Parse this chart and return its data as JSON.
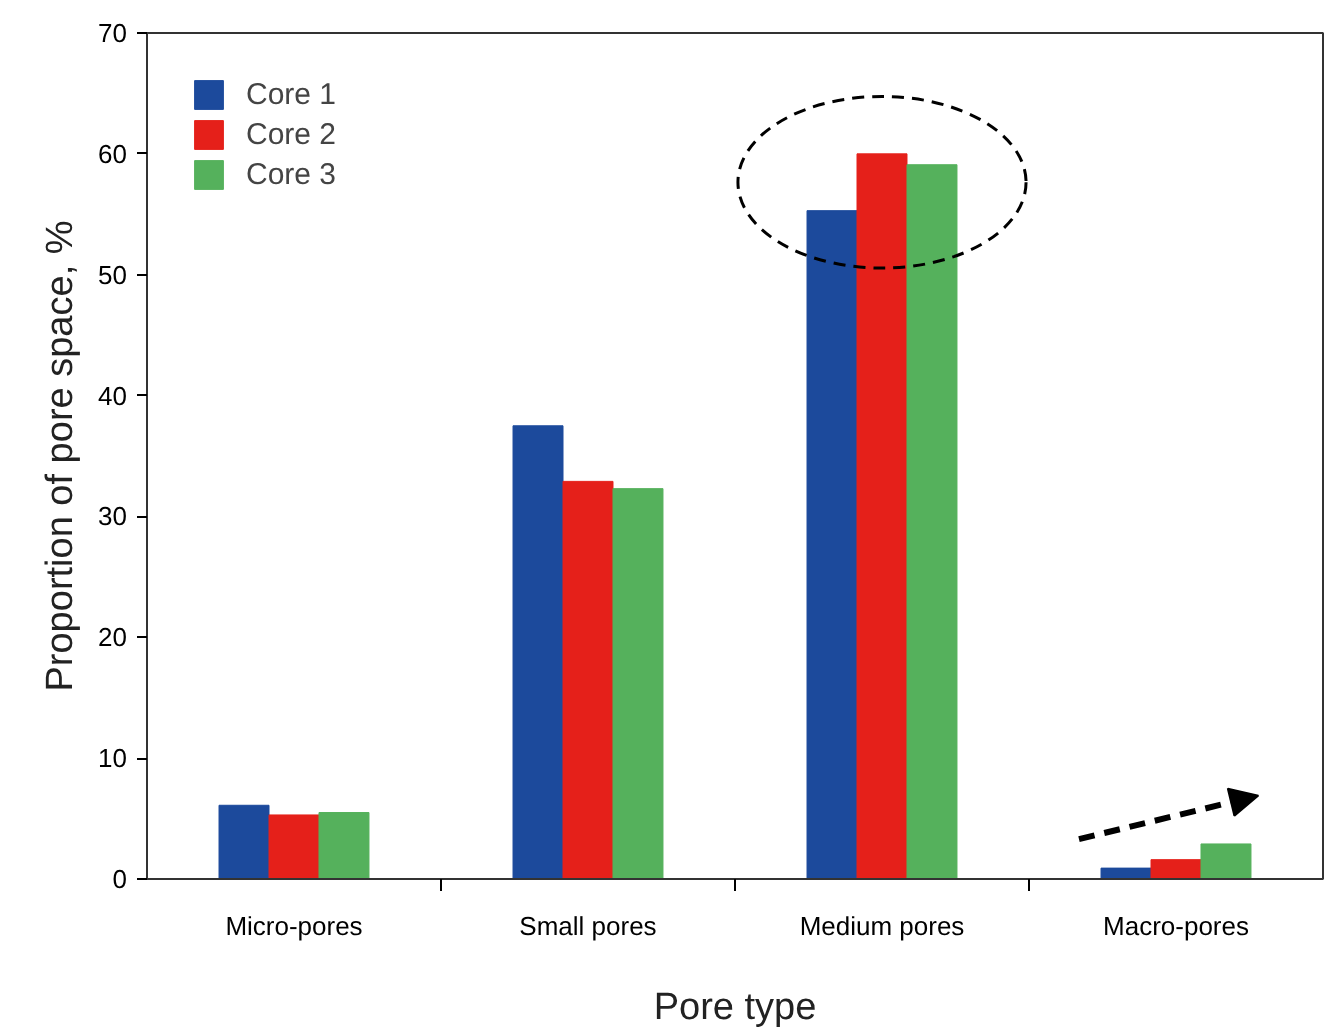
{
  "chart_data": {
    "type": "bar",
    "xlabel": "Pore type",
    "ylabel": "Proportion of pore space, %",
    "categories": [
      "Micro-pores",
      "Small pores",
      "Medium pores",
      "Macro-pores"
    ],
    "series": [
      {
        "name": "Core 1",
        "color": "#1c4a9c",
        "values": [
          6.1,
          37.5,
          55.3,
          0.9
        ]
      },
      {
        "name": "Core 2",
        "color": "#e5201a",
        "values": [
          5.3,
          32.9,
          60.0,
          1.6
        ]
      },
      {
        "name": "Core 3",
        "color": "#55b15c",
        "values": [
          5.5,
          32.3,
          59.1,
          2.9
        ]
      }
    ],
    "ylim": [
      0,
      70
    ],
    "yticks": [
      0,
      10,
      20,
      30,
      40,
      50,
      60,
      70
    ],
    "grid": false,
    "legend": "top left"
  }
}
